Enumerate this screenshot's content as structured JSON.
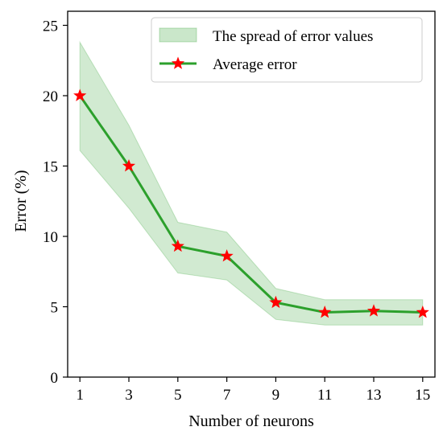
{
  "chart_data": {
    "type": "line",
    "xlabel": "Number of neurons",
    "ylabel": "Error (%)",
    "x": [
      1,
      3,
      5,
      7,
      9,
      11,
      13,
      15
    ],
    "xticks": [
      "1",
      "3",
      "5",
      "7",
      "9",
      "11",
      "13",
      "15"
    ],
    "yticks": [
      "0",
      "5",
      "10",
      "15",
      "20",
      "25"
    ],
    "xlim": [
      0.5,
      15.5
    ],
    "ylim": [
      0,
      26
    ],
    "grid": false,
    "legend_position": "top-right",
    "series": [
      {
        "name": "Average error",
        "marker": "star",
        "line_color": "#2ca02c",
        "marker_color": "#ff0000",
        "values": [
          20.0,
          15.0,
          9.3,
          8.6,
          5.3,
          4.6,
          4.7,
          4.6
        ]
      }
    ],
    "band": {
      "name": "The spread of error values",
      "fill_color": "#2ca02c",
      "lower": [
        16.1,
        12.0,
        7.4,
        6.9,
        4.1,
        3.7,
        3.7,
        3.7
      ],
      "upper": [
        23.8,
        17.9,
        11.0,
        10.3,
        6.3,
        5.5,
        5.5,
        5.5
      ]
    }
  }
}
